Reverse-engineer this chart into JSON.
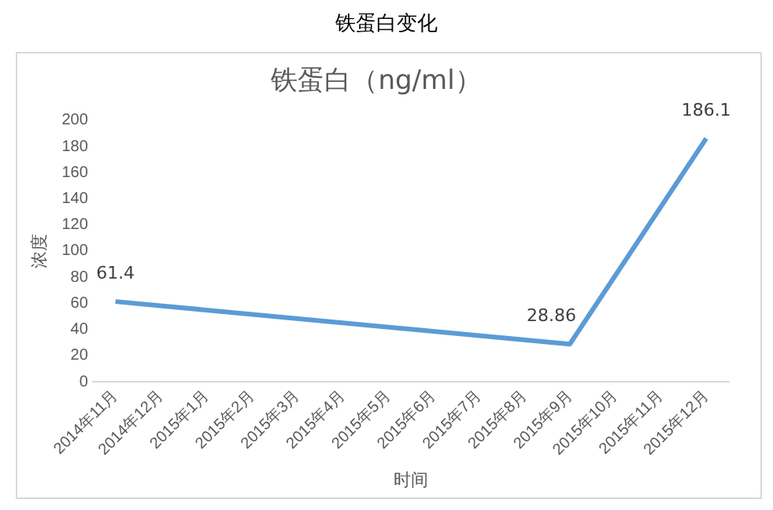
{
  "chart_data": {
    "type": "line",
    "title": "铁蛋白变化",
    "subtitle": "铁蛋白（ng/ml）",
    "xlabel": "时间",
    "ylabel": "浓度",
    "categories": [
      "2014年11月",
      "2014年12月",
      "2015年1月",
      "2015年2月",
      "2015年3月",
      "2015年4月",
      "2015年5月",
      "2015年6月",
      "2015年7月",
      "2015年8月",
      "2015年9月",
      "2015年10月",
      "2015年11月",
      "2015年12月"
    ],
    "series": [
      {
        "color": "#5b9bd5",
        "values": [
          61.4,
          null,
          null,
          null,
          null,
          null,
          null,
          null,
          null,
          null,
          28.86,
          null,
          null,
          186.1
        ]
      }
    ],
    "ylim": [
      0,
      200
    ],
    "yticks": [
      0,
      20,
      40,
      60,
      80,
      100,
      120,
      140,
      160,
      180,
      200
    ],
    "grid": false,
    "legend": false,
    "marker": "none",
    "data_labels": true
  }
}
